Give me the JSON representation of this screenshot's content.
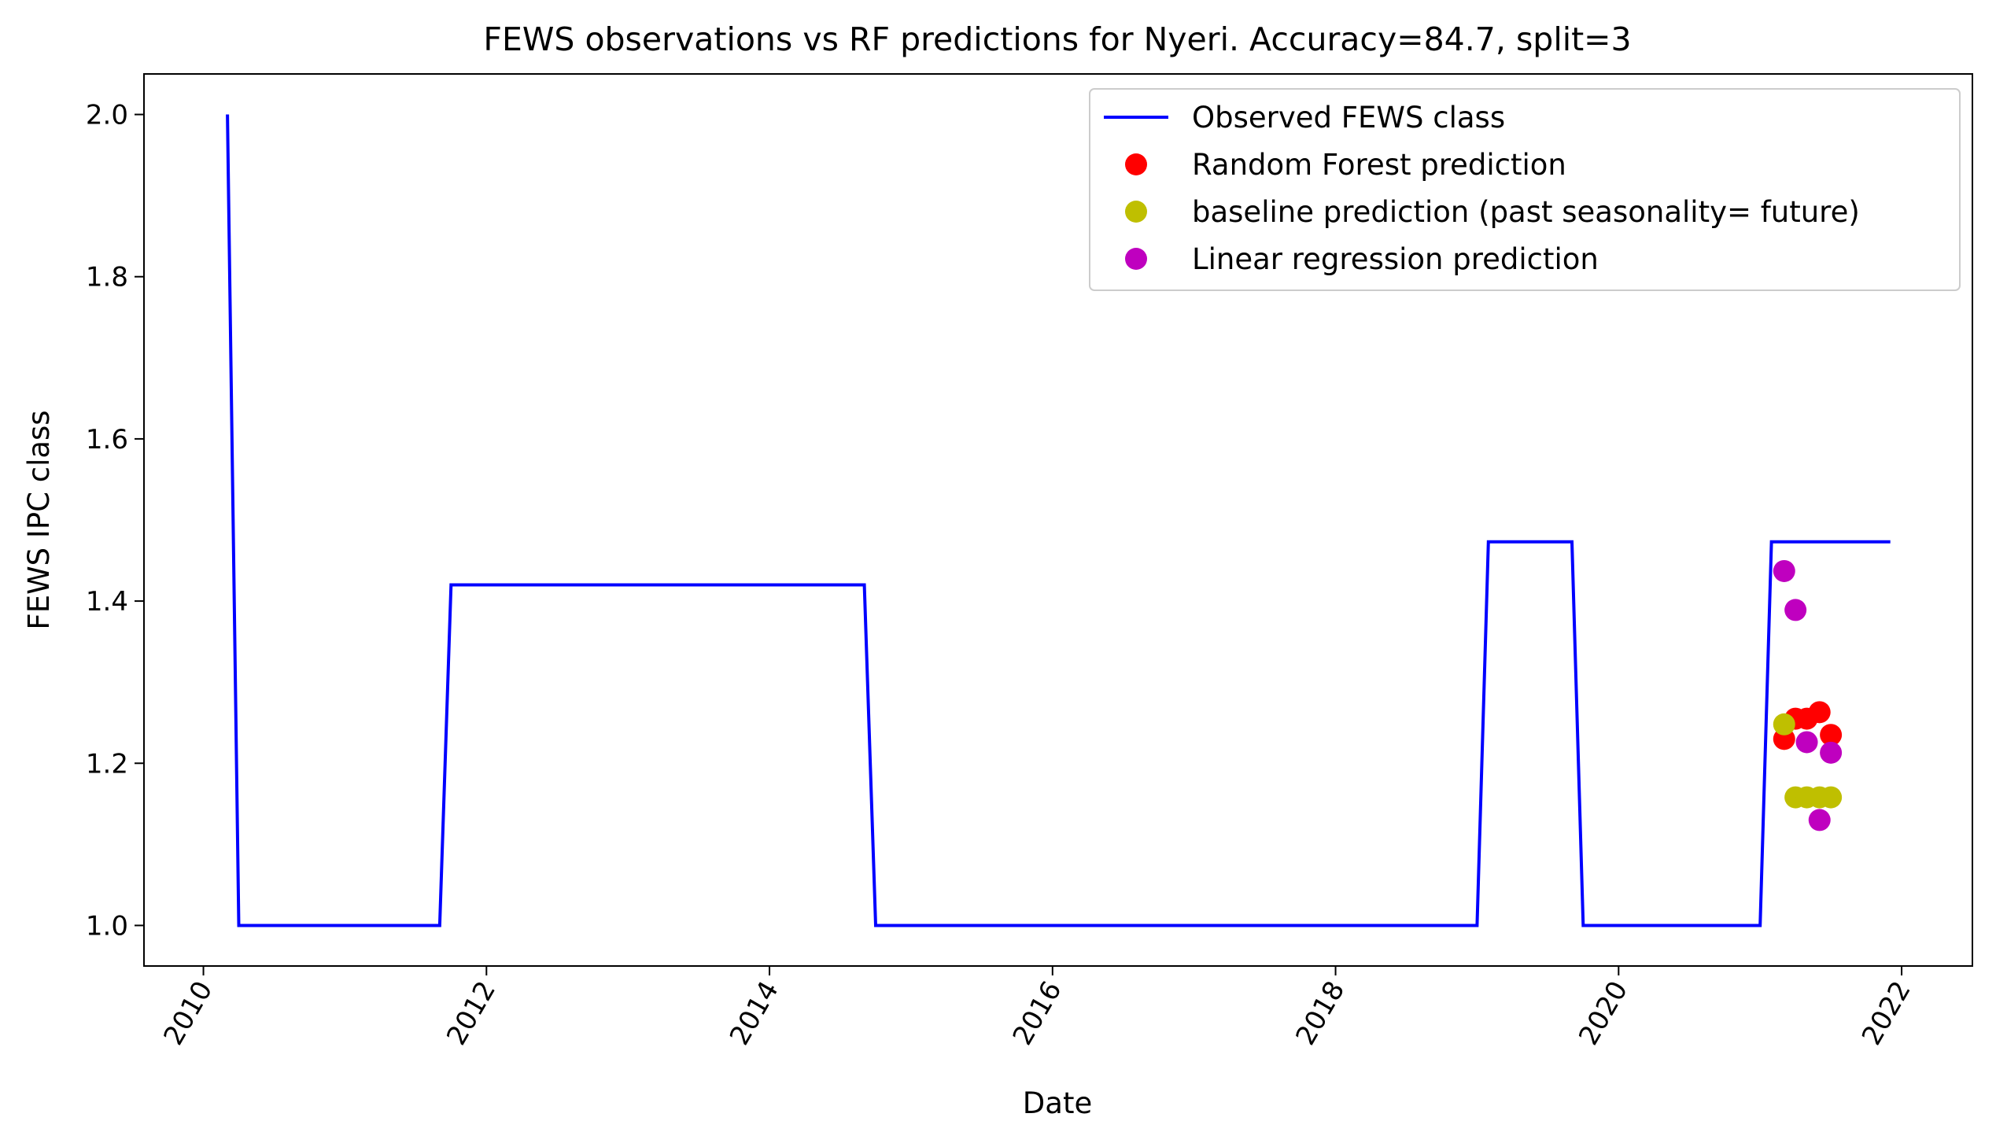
{
  "chart_data": {
    "type": "line",
    "title": "FEWS observations vs RF predictions for Nyeri. Accuracy=84.7, split=3",
    "xlabel": "Date",
    "ylabel": "FEWS IPC class",
    "xlim": [
      2009.58,
      2022.5
    ],
    "ylim": [
      0.95,
      2.05
    ],
    "x_ticks": [
      2010,
      2012,
      2014,
      2016,
      2018,
      2020,
      2022
    ],
    "x_tick_labels": [
      "2010",
      "2012",
      "2014",
      "2016",
      "2018",
      "2020",
      "2022"
    ],
    "y_ticks": [
      1.0,
      1.2,
      1.4,
      1.6,
      1.8,
      2.0
    ],
    "y_tick_labels": [
      "1.0",
      "1.2",
      "1.4",
      "1.6",
      "1.8",
      "2.0"
    ],
    "grid": false,
    "legend_position": "top-right",
    "series": [
      {
        "name": "Observed FEWS class",
        "kind": "line",
        "color": "#0000ff",
        "points": [
          [
            2010.17,
            2.0
          ],
          [
            2010.25,
            1.0
          ],
          [
            2011.67,
            1.0
          ],
          [
            2011.75,
            1.42
          ],
          [
            2014.67,
            1.42
          ],
          [
            2014.75,
            1.0
          ],
          [
            2019.0,
            1.0
          ],
          [
            2019.08,
            1.473
          ],
          [
            2019.67,
            1.473
          ],
          [
            2019.75,
            1.0
          ],
          [
            2021.0,
            1.0
          ],
          [
            2021.08,
            1.473
          ],
          [
            2021.92,
            1.473
          ]
        ]
      },
      {
        "name": "Random Forest prediction",
        "kind": "scatter",
        "color": "#ff0000",
        "points": [
          [
            2021.17,
            1.23
          ],
          [
            2021.25,
            1.255
          ],
          [
            2021.33,
            1.255
          ],
          [
            2021.42,
            1.263
          ],
          [
            2021.5,
            1.235
          ]
        ]
      },
      {
        "name": "baseline prediction (past seasonality= future)",
        "kind": "scatter",
        "color": "#bfbf00",
        "points": [
          [
            2021.17,
            1.248
          ],
          [
            2021.25,
            1.158
          ],
          [
            2021.33,
            1.158
          ],
          [
            2021.42,
            1.158
          ],
          [
            2021.5,
            1.158
          ]
        ]
      },
      {
        "name": "Linear regression prediction",
        "kind": "scatter",
        "color": "#bf00bf",
        "points": [
          [
            2021.17,
            1.437
          ],
          [
            2021.25,
            1.389
          ],
          [
            2021.33,
            1.226
          ],
          [
            2021.42,
            1.13
          ],
          [
            2021.5,
            1.213
          ]
        ]
      }
    ]
  }
}
